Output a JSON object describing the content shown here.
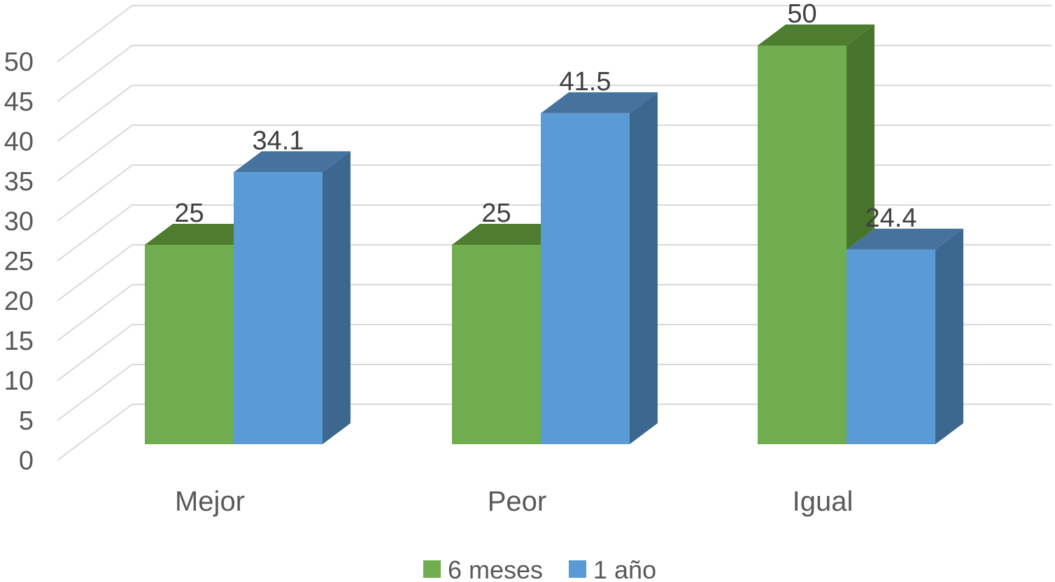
{
  "chart_data": {
    "type": "bar",
    "subtype": "3d-clustered-column",
    "title": "",
    "xlabel": "",
    "ylabel": "",
    "categories": [
      "Mejor",
      "Peor",
      "Igual"
    ],
    "series": [
      {
        "name": "6 meses",
        "values": [
          25,
          25,
          50
        ],
        "labels": [
          "25",
          "25",
          "50"
        ],
        "color_front": "#6FAD4E",
        "color_top": "#4E7D30",
        "color_side": "#48752B"
      },
      {
        "name": "1 año",
        "values": [
          34.1,
          41.5,
          24.4
        ],
        "labels": [
          "34.1",
          "41.5",
          "24.4"
        ],
        "color_front": "#5B9BD5",
        "color_top": "#45739E",
        "color_side": "#3C6890"
      }
    ],
    "y_axis": {
      "min": 0,
      "max": 50,
      "step": 5,
      "tick_labels": [
        "0",
        "5",
        "10",
        "15",
        "20",
        "25",
        "30",
        "35",
        "40",
        "45",
        "50"
      ]
    },
    "legend": {
      "position": "bottom",
      "entries": [
        "6 meses",
        "1 año"
      ]
    },
    "grid": true,
    "colors": {
      "gridline": "#D9D9D9",
      "axis_text": "#595959",
      "data_label_text": "#404040",
      "background": "#FFFFFF"
    }
  }
}
